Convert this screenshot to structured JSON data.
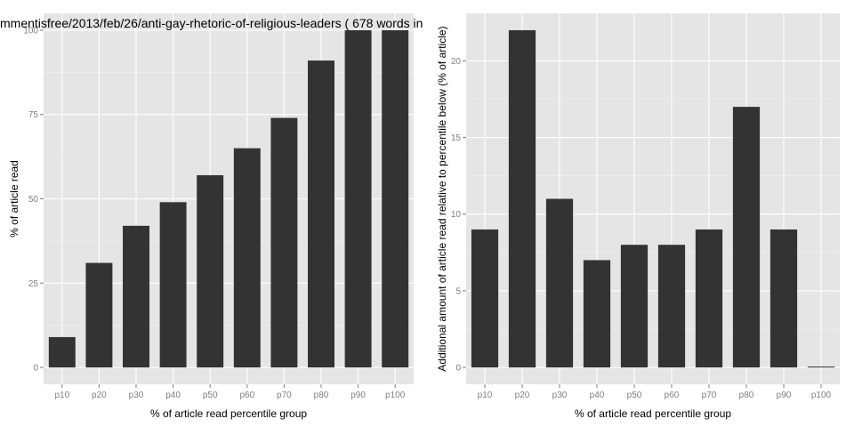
{
  "chart_data": [
    {
      "type": "bar",
      "title": "mmentisfree/2013/feb/26/anti-gay-rhetoric-of-religious-leaders ( 678 words in",
      "xlabel": "% of article read percentile group",
      "ylabel": "% of article read",
      "categories": [
        "p10",
        "p20",
        "p30",
        "p40",
        "p50",
        "p60",
        "p70",
        "p80",
        "p90",
        "p100"
      ],
      "values": [
        9,
        31,
        42,
        49,
        57,
        65,
        74,
        91,
        100,
        100
      ],
      "ylim": [
        -5,
        105
      ],
      "yticks": [
        0,
        25,
        50,
        75,
        100
      ],
      "ytick_labels": [
        "0",
        "25",
        "50",
        "75",
        "100"
      ],
      "grid": true,
      "bar_color": "#333333",
      "panel_color": "#e5e5e5"
    },
    {
      "type": "bar",
      "title": "",
      "xlabel": "% of article read percentile group",
      "ylabel": "Additional amount of article read relative to percentile below (% of article)",
      "categories": [
        "p10",
        "p20",
        "p30",
        "p40",
        "p50",
        "p60",
        "p70",
        "p80",
        "p90",
        "p100"
      ],
      "values": [
        9,
        22,
        11,
        7,
        8,
        8,
        9,
        17,
        9,
        0
      ],
      "ylim": [
        -1.1,
        23.1
      ],
      "yticks": [
        0,
        5,
        10,
        15,
        20
      ],
      "ytick_labels": [
        "0",
        "5",
        "10",
        "15",
        "20"
      ],
      "grid": true,
      "bar_color": "#333333",
      "panel_color": "#e5e5e5"
    }
  ]
}
